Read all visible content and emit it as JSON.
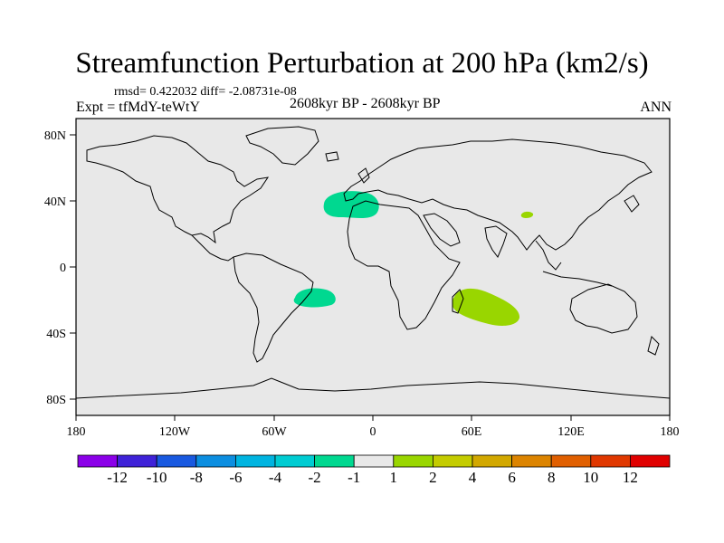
{
  "title": "Streamfunction Perturbation at 200 hPa (km2/s)",
  "stats": "rmsd= 0.422032 diff= -2.08731e-08",
  "experiment": "Expt = tfMdY-teWtY",
  "period": "2608kyr BP - 2608kyr BP",
  "season": "ANN",
  "lat_labels": [
    "80N",
    "40N",
    "0",
    "40S",
    "80S"
  ],
  "lon_labels": [
    "180",
    "120W",
    "60W",
    "0",
    "60E",
    "120E",
    "180"
  ],
  "map": {
    "background": "#e8e8e8",
    "features": [
      {
        "name": "north-atlantic-negative-anomaly",
        "lon": -12,
        "lat": 40,
        "color": "#00d890"
      },
      {
        "name": "south-atlantic-negative-anomaly",
        "lon": -36,
        "lat": -20,
        "color": "#00d890"
      },
      {
        "name": "indian-ocean-positive-anomaly",
        "lon": 60,
        "lat": -25,
        "color": "#99d600"
      },
      {
        "name": "central-asia-positive-anomaly",
        "lon": 93,
        "lat": 33,
        "color": "#99d600"
      }
    ]
  },
  "colorbar": {
    "colors": [
      "#8b00e8",
      "#3f22d8",
      "#1959e0",
      "#0c8ee0",
      "#00b4e0",
      "#00ccd2",
      "#00d890",
      "#e8e8e8",
      "#99d600",
      "#c4cc00",
      "#d2a800",
      "#dc8400",
      "#e05f00",
      "#e03800",
      "#e00000"
    ],
    "labels": [
      "-12",
      "-10",
      "-8",
      "-6",
      "-4",
      "-2",
      "-1",
      "1",
      "2",
      "4",
      "6",
      "8",
      "10",
      "12"
    ]
  }
}
